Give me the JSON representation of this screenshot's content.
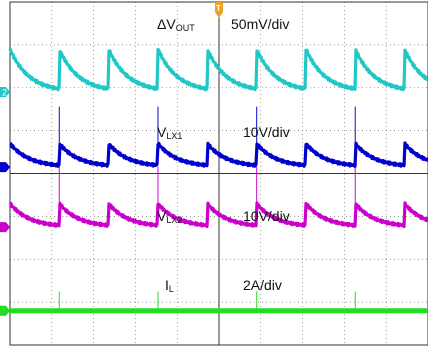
{
  "chart_data": {
    "type": "line",
    "title": "",
    "grid": true,
    "x_divisions": 10,
    "y_divisions": 8,
    "channels": [
      {
        "name": "ΔVOUT",
        "label_main": "ΔV",
        "label_sub": "OUT",
        "scale": "50mV/div",
        "marker": "2",
        "color": "#1fc7c7",
        "shape": "decay",
        "period_div": 1.18,
        "first_edge_div": 1.18,
        "pulse_period_div": 2.36,
        "baseline_div": 2.1,
        "step_div": 1.0,
        "spike_div": 0
      },
      {
        "name": "VLX1",
        "label_main": "V",
        "label_sub": "LX1",
        "scale": "10V/div",
        "marker": "",
        "color": "#0000cc",
        "shape": "decay",
        "period_div": 1.18,
        "first_edge_div": 1.18,
        "pulse_period_div": 2.36,
        "baseline_div": 3.85,
        "step_div": 0.55,
        "spike_div": 1.3
      },
      {
        "name": "VLX2",
        "label_main": "V",
        "label_sub": "LX2",
        "scale": "10V/div",
        "marker": "",
        "color": "#cc00cc",
        "shape": "decay",
        "period_div": 1.18,
        "first_edge_div": 1.18,
        "pulse_period_div": 2.36,
        "baseline_div": 5.25,
        "step_div": 0.55,
        "spike_div": 1.3
      },
      {
        "name": "IL",
        "label_main": "I",
        "label_sub": "L",
        "scale": "2A/div",
        "marker": "",
        "color": "#22dd22",
        "shape": "flat",
        "period_div": 1.18,
        "first_edge_div": 1.18,
        "pulse_period_div": 2.36,
        "baseline_div": 7.2,
        "step_div": 0,
        "spike_div": 0.45
      }
    ],
    "trigger_marker": "T"
  }
}
